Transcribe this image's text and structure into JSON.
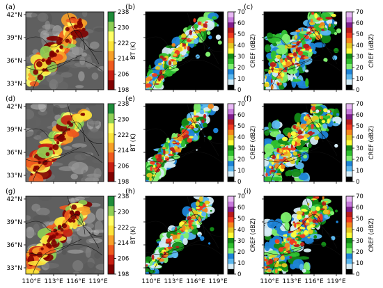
{
  "figure": {
    "rows": [
      {
        "bt": "(a)",
        "c1": "(b)",
        "c2": "(c)"
      },
      {
        "bt": "(d)",
        "c1": "(e)",
        "c2": "(f)"
      },
      {
        "bt": "(g)",
        "c1": "(h)",
        "c2": "(i)"
      }
    ],
    "lat_ticks": [
      "42°N",
      "39°N",
      "36°N",
      "33°N"
    ],
    "lon_ticks": [
      "110°E",
      "113°E",
      "116°E",
      "119°E"
    ],
    "bt_colorbar": {
      "label": "BT (K)",
      "ticks": [
        "238",
        "230",
        "222",
        "214",
        "206",
        "198"
      ]
    },
    "cref_colorbar": {
      "label": "CREF (dBZ)",
      "ticks": [
        "70",
        "60",
        "50",
        "40",
        "30",
        "20",
        "10",
        "0"
      ]
    },
    "colors": {
      "bt_scale": [
        "#7f0000",
        "#c81e12",
        "#f05a1e",
        "#f8a028",
        "#fce43a",
        "#ffff66",
        "#8fd055",
        "#1e8c3a"
      ],
      "cref_scale": [
        "#000000",
        "#d6ecf6",
        "#5ab7ee",
        "#1d84d8",
        "#7ff06e",
        "#2fc02e",
        "#138a17",
        "#ffff3a",
        "#e3c822",
        "#f6871c",
        "#f03a1f",
        "#b81a1a",
        "#7f1d8c",
        "#c779dc",
        "#e8b9f4"
      ]
    }
  },
  "chart_data": [
    {
      "type": "heatmap",
      "panel": "(a)",
      "field": "brightness temperature",
      "x_ticks": [
        "110°E",
        "113°E",
        "116°E",
        "119°E"
      ],
      "y_ticks": [
        "42°N",
        "39°N",
        "36°N",
        "33°N"
      ],
      "colorbar": {
        "label": "BT (K)",
        "range": [
          198,
          238
        ]
      }
    },
    {
      "type": "heatmap",
      "panel": "(b)",
      "x_ticks": [
        "110°E",
        "113°E",
        "116°E",
        "119°E"
      ],
      "y_ticks": [
        "42°N",
        "39°N",
        "36°N",
        "33°N"
      ],
      "colorbar": {
        "label": "CREF (dBZ)",
        "range": [
          0,
          70
        ]
      }
    },
    {
      "type": "heatmap",
      "panel": "(c)",
      "x_ticks": [
        "110°E",
        "113°E",
        "116°E",
        "119°E"
      ],
      "y_ticks": [
        "42°N",
        "39°N",
        "36°N",
        "33°N"
      ],
      "colorbar": {
        "label": "CREF (dBZ)",
        "range": [
          0,
          70
        ]
      }
    },
    {
      "type": "heatmap",
      "panel": "(d)",
      "x_ticks": [
        "110°E",
        "113°E",
        "116°E",
        "119°E"
      ],
      "y_ticks": [
        "42°N",
        "39°N",
        "36°N",
        "33°N"
      ],
      "colorbar": {
        "label": "BT (K)",
        "range": [
          198,
          238
        ]
      }
    },
    {
      "type": "heatmap",
      "panel": "(e)",
      "x_ticks": [
        "110°E",
        "113°E",
        "116°E",
        "119°E"
      ],
      "y_ticks": [
        "42°N",
        "39°N",
        "36°N",
        "33°N"
      ],
      "colorbar": {
        "label": "CREF (dBZ)",
        "range": [
          0,
          70
        ]
      }
    },
    {
      "type": "heatmap",
      "panel": "(f)",
      "x_ticks": [
        "110°E",
        "113°E",
        "116°E",
        "119°E"
      ],
      "y_ticks": [
        "42°N",
        "39°N",
        "36°N",
        "33°N"
      ],
      "colorbar": {
        "label": "CREF (dBZ)",
        "range": [
          0,
          70
        ]
      }
    },
    {
      "type": "heatmap",
      "panel": "(g)",
      "x_ticks": [
        "110°E",
        "113°E",
        "116°E",
        "119°E"
      ],
      "y_ticks": [
        "42°N",
        "39°N",
        "36°N",
        "33°N"
      ],
      "colorbar": {
        "label": "BT (K)",
        "range": [
          198,
          238
        ]
      }
    },
    {
      "type": "heatmap",
      "panel": "(h)",
      "x_ticks": [
        "110°E",
        "113°E",
        "116°E",
        "119°E"
      ],
      "y_ticks": [
        "42°N",
        "39°N",
        "36°N",
        "33°N"
      ],
      "colorbar": {
        "label": "CREF (dBZ)",
        "range": [
          0,
          70
        ]
      }
    },
    {
      "type": "heatmap",
      "panel": "(i)",
      "x_ticks": [
        "110°E",
        "113°E",
        "116°E",
        "119°E"
      ],
      "y_ticks": [
        "42°N",
        "39°N",
        "36°N",
        "33°N"
      ],
      "colorbar": {
        "label": "CREF (dBZ)",
        "range": [
          0,
          70
        ]
      }
    }
  ]
}
